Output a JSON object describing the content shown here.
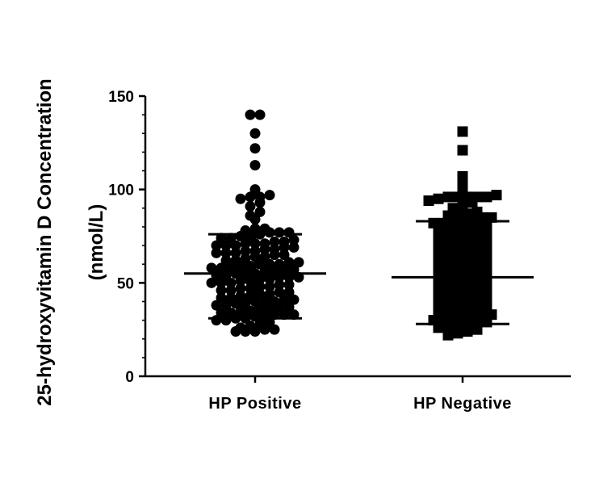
{
  "chart_data": {
    "type": "scatter",
    "title": "",
    "xlabel": "",
    "ylabel_line1": "25-hydroxyvitamin D Concentration",
    "ylabel_line2": "(nmol/L)",
    "ylim": [
      0,
      150
    ],
    "yticks": [
      "0",
      "50",
      "100",
      "150"
    ],
    "categories": [
      "HP Positive",
      "HP Negative"
    ],
    "grid": false,
    "legend": "none",
    "series": [
      {
        "marker": "circle",
        "median": 55,
        "error_low": 31,
        "error_high": 76,
        "values": [
          140,
          140,
          130,
          122,
          113,
          100,
          97,
          96,
          96,
          95,
          93,
          91,
          88,
          86,
          84,
          79,
          79,
          78,
          77,
          77,
          77,
          76,
          75,
          75,
          74,
          74,
          73,
          72,
          72,
          71,
          71,
          71,
          70,
          70,
          70,
          69,
          69,
          68,
          68,
          67,
          67,
          66,
          66,
          66,
          65,
          65,
          64,
          64,
          63,
          62,
          62,
          61,
          61,
          60,
          60,
          60,
          59,
          59,
          58,
          58,
          58,
          57,
          57,
          56,
          56,
          55,
          55,
          55,
          54,
          54,
          53,
          53,
          53,
          52,
          52,
          51,
          51,
          50,
          50,
          50,
          49,
          49,
          48,
          48,
          47,
          47,
          46,
          46,
          45,
          45,
          44,
          44,
          43,
          43,
          42,
          42,
          41,
          41,
          40,
          40,
          40,
          39,
          39,
          38,
          38,
          37,
          37,
          36,
          36,
          35,
          35,
          34,
          34,
          33,
          33,
          33,
          32,
          32,
          31,
          31,
          30,
          30,
          29,
          28,
          27,
          26,
          25,
          25,
          24,
          24,
          24
        ]
      },
      {
        "marker": "square",
        "median": 53,
        "error_low": 28,
        "error_high": 83,
        "values": [
          131,
          121,
          107,
          102,
          98,
          97,
          96,
          96,
          96,
          96,
          96,
          95,
          94,
          93,
          91,
          90,
          88,
          87,
          86,
          86,
          85,
          85,
          84,
          84,
          83,
          82,
          82,
          81,
          80,
          80,
          79,
          78,
          78,
          77,
          76,
          76,
          75,
          74,
          74,
          73,
          72,
          72,
          71,
          70,
          70,
          69,
          68,
          68,
          67,
          66,
          66,
          65,
          64,
          64,
          63,
          62,
          62,
          61,
          60,
          60,
          59,
          58,
          58,
          57,
          56,
          56,
          55,
          54,
          54,
          53,
          52,
          52,
          51,
          50,
          50,
          49,
          48,
          48,
          47,
          46,
          46,
          45,
          44,
          44,
          43,
          42,
          42,
          41,
          40,
          40,
          39,
          38,
          38,
          37,
          36,
          36,
          35,
          34,
          34,
          33,
          32,
          32,
          31,
          31,
          30,
          30,
          29,
          29,
          28,
          28,
          27,
          26,
          25,
          24,
          23,
          22
        ]
      }
    ]
  }
}
